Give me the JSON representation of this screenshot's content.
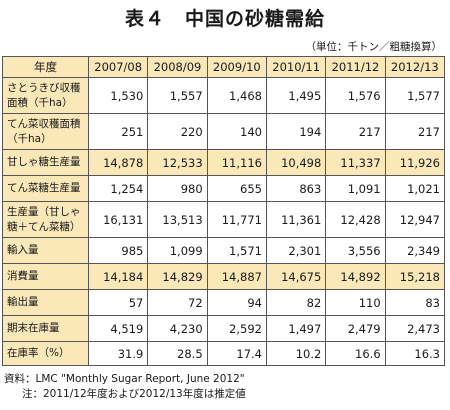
{
  "title": "表４　中国の砂糖需給",
  "unit": "（単位：千トン／粗糖換算）",
  "table": {
    "corner": "年度",
    "years": [
      "2007/08",
      "2008/09",
      "2009/10",
      "2010/11",
      "2011/12",
      "2012/13"
    ],
    "rows": [
      {
        "label": "さとうきび収穫面積（千ha）",
        "values": [
          "1,530",
          "1,557",
          "1,468",
          "1,495",
          "1,576",
          "1,577"
        ]
      },
      {
        "label": "てん菜収穫面積（千ha）",
        "values": [
          "251",
          "220",
          "140",
          "194",
          "217",
          "217"
        ]
      },
      {
        "label": "甘しゃ糖生産量",
        "values": [
          "14,878",
          "12,533",
          "11,116",
          "10,498",
          "11,337",
          "11,926"
        ]
      },
      {
        "label": "てん菜糖生産量",
        "values": [
          "1,254",
          "980",
          "655",
          "863",
          "1,091",
          "1,021"
        ]
      },
      {
        "label": "生産量（甘しゃ糖＋てん菜糖）",
        "values": [
          "16,131",
          "13,513",
          "11,771",
          "11,361",
          "12,428",
          "12,947"
        ]
      },
      {
        "label": "輸入量",
        "values": [
          "985",
          "1,099",
          "1,571",
          "2,301",
          "3,556",
          "2,349"
        ]
      },
      {
        "label": "消費量",
        "values": [
          "14,184",
          "14,829",
          "14,887",
          "14,675",
          "14,892",
          "15,218"
        ]
      },
      {
        "label": "輸出量",
        "values": [
          "57",
          "72",
          "94",
          "82",
          "110",
          "83"
        ]
      },
      {
        "label": "期末在庫量",
        "values": [
          "4,519",
          "4,230",
          "2,592",
          "1,497",
          "2,479",
          "2,473"
        ]
      },
      {
        "label": "在庫率（%）",
        "values": [
          "31.9",
          "28.5",
          "17.4",
          "10.2",
          "16.6",
          "16.3"
        ]
      }
    ]
  },
  "notes": {
    "source": "資料：LMC \"Monthly Sugar Report, June 2012\"",
    "note": "注：2011/12年度および2012/13年度は推定値"
  },
  "colors": {
    "header_fill": "#fbe8b9",
    "border": "#555555"
  }
}
